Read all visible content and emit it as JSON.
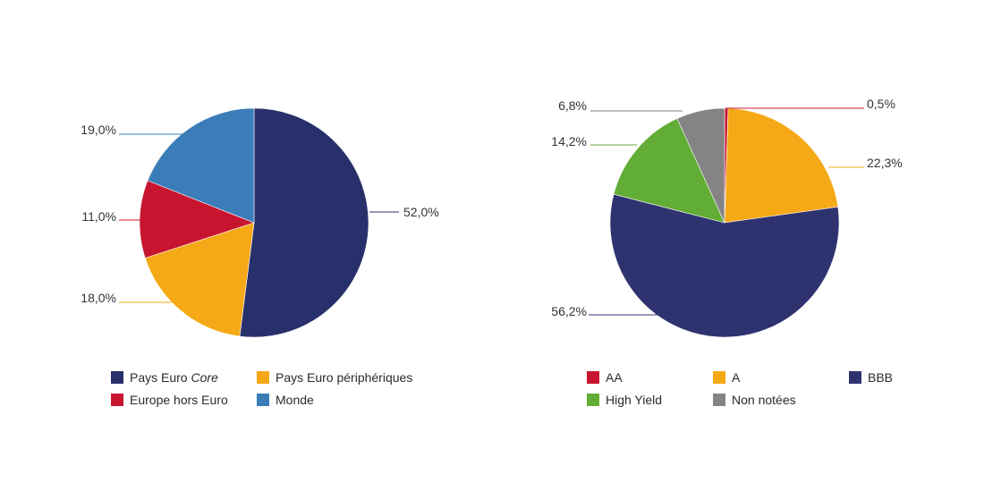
{
  "chart_data": [
    {
      "type": "pie",
      "title": "",
      "slices": [
        {
          "name": "Pays Euro Core",
          "name_prefix": "Pays Euro ",
          "name_italic": "Core",
          "value": 52.0,
          "label": "52,0%",
          "color": "#28306b"
        },
        {
          "name": "Pays Euro périphériques",
          "value": 18.0,
          "label": "18,0%",
          "color": "#f5a917"
        },
        {
          "name": "Europe hors Euro",
          "value": 11.0,
          "label": "11,0%",
          "color": "#c8152f"
        },
        {
          "name": "Monde",
          "value": 19.0,
          "label": "19,0%",
          "color": "#3b7db8"
        }
      ],
      "start": "12 o'clock",
      "direction": "clockwise",
      "legend_position": "bottom",
      "legend": [
        [
          "Pays Euro Core",
          "Pays Euro périphériques"
        ],
        [
          "Europe hors Euro",
          "Monde"
        ]
      ]
    },
    {
      "type": "pie",
      "title": "",
      "slices": [
        {
          "name": "AA",
          "value": 0.5,
          "label": "0,5%",
          "color": "#c8152f"
        },
        {
          "name": "A",
          "value": 22.3,
          "label": "22,3%",
          "color": "#f5a917"
        },
        {
          "name": "BBB",
          "value": 56.2,
          "label": "56,2%",
          "color": "#2e3370"
        },
        {
          "name": "High Yield",
          "value": 14.2,
          "label": "14,2%",
          "color": "#62ad35"
        },
        {
          "name": "Non notées",
          "value": 6.8,
          "label": "6,8%",
          "color": "#858386"
        }
      ],
      "start": "12 o'clock",
      "direction": "clockwise",
      "legend_position": "bottom",
      "legend": [
        [
          "AA",
          "A",
          "BBB"
        ],
        [
          "High Yield",
          "Non notées"
        ]
      ]
    }
  ]
}
